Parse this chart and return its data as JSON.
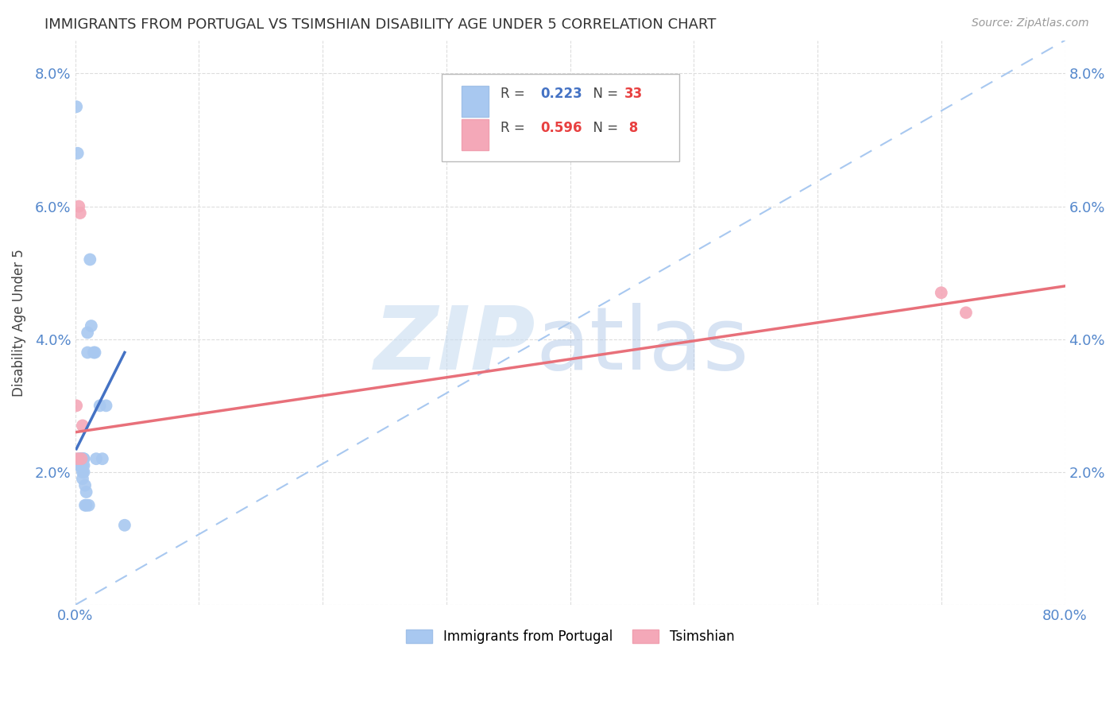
{
  "title": "IMMIGRANTS FROM PORTUGAL VS TSIMSHIAN DISABILITY AGE UNDER 5 CORRELATION CHART",
  "source": "Source: ZipAtlas.com",
  "ylabel": "Disability Age Under 5",
  "xlim": [
    0.0,
    0.8
  ],
  "ylim": [
    0.0,
    0.085
  ],
  "xticks": [
    0.0,
    0.1,
    0.2,
    0.3,
    0.4,
    0.5,
    0.6,
    0.7,
    0.8
  ],
  "xticklabels": [
    "0.0%",
    "",
    "",
    "",
    "",
    "",
    "",
    "",
    "80.0%"
  ],
  "yticks": [
    0.0,
    0.02,
    0.04,
    0.06,
    0.08
  ],
  "yticklabels": [
    "",
    "2.0%",
    "4.0%",
    "6.0%",
    "8.0%"
  ],
  "legend_label1": "Immigrants from Portugal",
  "legend_label2": "Tsimshian",
  "blue_scatter_color": "#A8C8F0",
  "pink_scatter_color": "#F4A8B8",
  "blue_line_color": "#4472C4",
  "pink_line_color": "#E8707A",
  "dashed_line_color": "#A8C8F0",
  "background_color": "#FFFFFF",
  "grid_color": "#DDDDDD",
  "portugal_x": [
    0.001,
    0.002,
    0.003,
    0.003,
    0.004,
    0.004,
    0.005,
    0.005,
    0.005,
    0.006,
    0.006,
    0.006,
    0.006,
    0.007,
    0.007,
    0.007,
    0.007,
    0.008,
    0.008,
    0.009,
    0.009,
    0.01,
    0.01,
    0.011,
    0.012,
    0.013,
    0.015,
    0.016,
    0.017,
    0.02,
    0.022,
    0.025,
    0.04
  ],
  "portugal_y": [
    0.075,
    0.068,
    0.022,
    0.021,
    0.022,
    0.021,
    0.022,
    0.022,
    0.021,
    0.022,
    0.021,
    0.02,
    0.019,
    0.022,
    0.022,
    0.021,
    0.02,
    0.018,
    0.015,
    0.017,
    0.015,
    0.041,
    0.038,
    0.015,
    0.052,
    0.042,
    0.038,
    0.038,
    0.022,
    0.03,
    0.022,
    0.03,
    0.012
  ],
  "tsimshian_x": [
    0.001,
    0.002,
    0.003,
    0.004,
    0.005,
    0.006,
    0.7,
    0.72
  ],
  "tsimshian_y": [
    0.03,
    0.022,
    0.06,
    0.059,
    0.022,
    0.027,
    0.047,
    0.044
  ],
  "blue_line_x0": 0.001,
  "blue_line_x1": 0.04,
  "blue_line_y0": 0.0235,
  "blue_line_y1": 0.038,
  "dashed_line_x0": 0.0,
  "dashed_line_x1": 0.8,
  "dashed_line_y0": 0.0,
  "dashed_line_y1": 0.085,
  "pink_line_x0": 0.0,
  "pink_line_x1": 0.8,
  "pink_line_y0": 0.026,
  "pink_line_y1": 0.048
}
